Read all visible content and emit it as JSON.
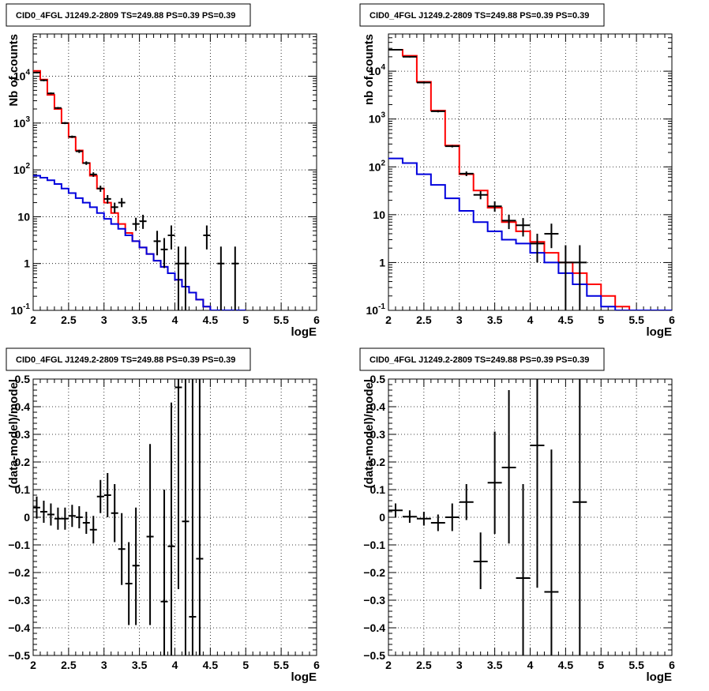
{
  "chart_data": [
    {
      "type": "histogram-step",
      "title": "CID0_4FGL J1249.2-2809 TS=249.88 PS=0.39 PS=0.39",
      "xlabel": "logE",
      "ylabel": "Nb of counts",
      "xlim": [
        2,
        6
      ],
      "ylim": [
        0.1,
        80000
      ],
      "yscale": "log",
      "grid": true,
      "x_ticks": [
        "2",
        "2.5",
        "3",
        "3.5",
        "4",
        "4.5",
        "5",
        "5.5",
        "6"
      ],
      "y_ticks": [
        {
          "v": 0.1,
          "base": "10",
          "exp": "-1"
        },
        {
          "v": 1,
          "label": "1"
        },
        {
          "v": 10,
          "label": "10"
        },
        {
          "v": 100,
          "base": "10",
          "exp": "2"
        },
        {
          "v": 1000,
          "base": "10",
          "exp": "3"
        },
        {
          "v": 10000,
          "base": "10",
          "exp": "4"
        }
      ],
      "edges": [
        2.0,
        2.1,
        2.2,
        2.3,
        2.4,
        2.5,
        2.6,
        2.7,
        2.8,
        2.9,
        3.0,
        3.1,
        3.2,
        3.3,
        3.4,
        3.5,
        3.6,
        3.7,
        3.8,
        3.9,
        4.0,
        4.1,
        4.2,
        4.3,
        4.4,
        4.5,
        4.6,
        4.7,
        4.8,
        4.9,
        5.0,
        5.1,
        5.2,
        5.3,
        5.4,
        5.5,
        5.6,
        5.7,
        5.8,
        5.9,
        6.0
      ],
      "series": [
        {
          "color": "#ff0000",
          "values": [
            13000,
            8500,
            4000,
            2000,
            1000,
            500,
            260,
            140,
            75,
            40,
            20,
            12,
            7,
            4.5,
            3,
            2.2,
            1.6,
            1.15,
            0.85,
            0.62,
            0.45,
            0.32,
            0.24,
            0.17,
            0.12,
            0.1,
            0.1,
            0.1,
            0.1,
            0.1
          ]
        },
        {
          "color": "#0000dd",
          "values": [
            75,
            68,
            60,
            50,
            40,
            32,
            25,
            20,
            16,
            12,
            9,
            7,
            5.5,
            4,
            3,
            2.2,
            1.6,
            1.15,
            0.85,
            0.62,
            0.45,
            0.32,
            0.24,
            0.17,
            0.12,
            0.1,
            0.1,
            0.1,
            0.1,
            0.1
          ]
        }
      ],
      "points": [
        {
          "x": 2.05,
          "y": 12000,
          "lo": 11500,
          "hi": 12500,
          "xe": 0.05
        },
        {
          "x": 2.15,
          "y": 8200,
          "lo": 7800,
          "hi": 8600,
          "xe": 0.05
        },
        {
          "x": 2.25,
          "y": 4300,
          "lo": 4100,
          "hi": 4500,
          "xe": 0.05
        },
        {
          "x": 2.35,
          "y": 2100,
          "lo": 2000,
          "hi": 2200,
          "xe": 0.05
        },
        {
          "x": 2.45,
          "y": 1000,
          "lo": 950,
          "hi": 1050,
          "xe": 0.05
        },
        {
          "x": 2.55,
          "y": 510,
          "lo": 480,
          "hi": 540,
          "xe": 0.05
        },
        {
          "x": 2.65,
          "y": 250,
          "lo": 230,
          "hi": 270,
          "xe": 0.05
        },
        {
          "x": 2.75,
          "y": 140,
          "lo": 128,
          "hi": 152,
          "xe": 0.05
        },
        {
          "x": 2.85,
          "y": 80,
          "lo": 71,
          "hi": 89,
          "xe": 0.05
        },
        {
          "x": 2.95,
          "y": 40,
          "lo": 34,
          "hi": 46,
          "xe": 0.05
        },
        {
          "x": 3.05,
          "y": 24,
          "lo": 19,
          "hi": 29,
          "xe": 0.05
        },
        {
          "x": 3.15,
          "y": 16,
          "lo": 12,
          "hi": 20,
          "xe": 0.05
        },
        {
          "x": 3.25,
          "y": 20,
          "lo": 16,
          "hi": 25,
          "xe": 0.05
        },
        {
          "x": 3.45,
          "y": 7,
          "lo": 5,
          "hi": 9.5,
          "xe": 0.05
        },
        {
          "x": 3.55,
          "y": 8,
          "lo": 5.5,
          "hi": 11,
          "xe": 0.05
        },
        {
          "x": 3.75,
          "y": 3,
          "lo": 1.5,
          "hi": 5,
          "xe": 0.05
        },
        {
          "x": 3.85,
          "y": 2,
          "lo": 0.8,
          "hi": 3.5,
          "xe": 0.05
        },
        {
          "x": 3.95,
          "y": 4,
          "lo": 2,
          "hi": 6.5,
          "xe": 0.05
        },
        {
          "x": 4.05,
          "y": 1,
          "lo": 0.1,
          "hi": 2.3,
          "xe": 0.05
        },
        {
          "x": 4.15,
          "y": 1,
          "lo": 0.1,
          "hi": 2.3,
          "xe": 0.05
        },
        {
          "x": 4.45,
          "y": 4,
          "lo": 2,
          "hi": 6.5,
          "xe": 0.05
        },
        {
          "x": 4.65,
          "y": 1,
          "lo": 0.1,
          "hi": 2.3,
          "xe": 0.05
        },
        {
          "x": 4.85,
          "y": 1,
          "lo": 0.1,
          "hi": 2.3,
          "xe": 0.05
        }
      ]
    },
    {
      "type": "histogram-step",
      "title": "CID0_4FGL J1249.2-2809 TS=249.88 PS=0.39 PS=0.39",
      "xlabel": "logE",
      "ylabel": "nb of counts",
      "xlim": [
        2,
        6
      ],
      "ylim": [
        0.1,
        60000
      ],
      "yscale": "log",
      "grid": true,
      "x_ticks": [
        "2",
        "2.5",
        "3",
        "3.5",
        "4",
        "4.5",
        "5",
        "5.5",
        "6"
      ],
      "y_ticks": [
        {
          "v": 0.1,
          "base": "10",
          "exp": "-1"
        },
        {
          "v": 1,
          "label": "1"
        },
        {
          "v": 10,
          "label": "10"
        },
        {
          "v": 100,
          "base": "10",
          "exp": "2"
        },
        {
          "v": 1000,
          "base": "10",
          "exp": "3"
        },
        {
          "v": 10000,
          "base": "10",
          "exp": "4"
        }
      ],
      "edges": [
        2.0,
        2.2,
        2.4,
        2.6,
        2.8,
        3.0,
        3.2,
        3.4,
        3.6,
        3.8,
        4.0,
        4.2,
        4.4,
        4.6,
        4.8,
        5.0,
        5.2,
        5.4,
        5.6,
        5.8,
        6.0
      ],
      "series": [
        {
          "color": "#ff0000",
          "values": [
            28000,
            21000,
            6000,
            1500,
            280,
            70,
            32,
            14,
            7,
            4.5,
            2.7,
            1.6,
            1,
            0.6,
            0.35,
            0.2,
            0.12,
            0.1,
            0.1,
            0.1
          ]
        },
        {
          "color": "#0000dd",
          "values": [
            150,
            120,
            70,
            42,
            22,
            12,
            7,
            4.5,
            3,
            2.5,
            1.6,
            1,
            0.6,
            0.35,
            0.2,
            0.12,
            0.1,
            0.1,
            0.1,
            0.1
          ]
        }
      ],
      "points": [
        {
          "x": 2.1,
          "y": 28000,
          "lo": 27200,
          "hi": 28800,
          "xe": 0.1
        },
        {
          "x": 2.3,
          "y": 20000,
          "lo": 19300,
          "hi": 20700,
          "xe": 0.1
        },
        {
          "x": 2.5,
          "y": 5800,
          "lo": 5500,
          "hi": 6100,
          "xe": 0.1
        },
        {
          "x": 2.7,
          "y": 1450,
          "lo": 1380,
          "hi": 1520,
          "xe": 0.1
        },
        {
          "x": 2.9,
          "y": 270,
          "lo": 255,
          "hi": 285,
          "xe": 0.1
        },
        {
          "x": 3.1,
          "y": 72,
          "lo": 64,
          "hi": 80,
          "xe": 0.1
        },
        {
          "x": 3.3,
          "y": 26,
          "lo": 21,
          "hi": 31,
          "xe": 0.1
        },
        {
          "x": 3.5,
          "y": 15,
          "lo": 11.5,
          "hi": 19,
          "xe": 0.1
        },
        {
          "x": 3.7,
          "y": 7.5,
          "lo": 5,
          "hi": 10,
          "xe": 0.1
        },
        {
          "x": 3.9,
          "y": 6,
          "lo": 3.5,
          "hi": 8.5,
          "xe": 0.1
        },
        {
          "x": 4.1,
          "y": 2.5,
          "lo": 1,
          "hi": 4,
          "xe": 0.1
        },
        {
          "x": 4.3,
          "y": 4,
          "lo": 2,
          "hi": 6.5,
          "xe": 0.1
        },
        {
          "x": 4.5,
          "y": 1,
          "lo": 0.1,
          "hi": 2.3,
          "xe": 0.1
        },
        {
          "x": 4.7,
          "y": 1,
          "lo": 0.1,
          "hi": 2.3,
          "xe": 0.1
        }
      ]
    },
    {
      "type": "scatter-errorbars",
      "title": "CID0_4FGL J1249.2-2809 TS=249.88 PS=0.39 PS=0.39",
      "xlabel": "logE",
      "ylabel": "(data-model)/model",
      "xlim": [
        2,
        6
      ],
      "ylim": [
        -0.5,
        0.5
      ],
      "yscale": "linear",
      "grid": true,
      "x_ticks": [
        "2",
        "2.5",
        "3",
        "3.5",
        "4",
        "4.5",
        "5",
        "5.5",
        "6"
      ],
      "y_ticks": [
        {
          "v": -0.5,
          "label": "−0.5"
        },
        {
          "v": -0.4,
          "label": "−0.4"
        },
        {
          "v": -0.3,
          "label": "−0.3"
        },
        {
          "v": -0.2,
          "label": "−0.2"
        },
        {
          "v": -0.1,
          "label": "−0.1"
        },
        {
          "v": 0,
          "label": "0"
        },
        {
          "v": 0.1,
          "label": "0.1"
        },
        {
          "v": 0.2,
          "label": "0.2"
        },
        {
          "v": 0.3,
          "label": "0.3"
        },
        {
          "v": 0.4,
          "label": "0.4"
        },
        {
          "v": 0.5,
          "label": "0.5"
        }
      ],
      "points": [
        {
          "x": 2.05,
          "y": 0.035,
          "lo": -0.005,
          "hi": 0.075,
          "xe": 0.05
        },
        {
          "x": 2.15,
          "y": 0.02,
          "lo": -0.02,
          "hi": 0.06,
          "xe": 0.05
        },
        {
          "x": 2.25,
          "y": 0.01,
          "lo": -0.03,
          "hi": 0.05,
          "xe": 0.05
        },
        {
          "x": 2.35,
          "y": -0.005,
          "lo": -0.045,
          "hi": 0.035,
          "xe": 0.05
        },
        {
          "x": 2.45,
          "y": -0.005,
          "lo": -0.045,
          "hi": 0.035,
          "xe": 0.05
        },
        {
          "x": 2.55,
          "y": 0.005,
          "lo": -0.035,
          "hi": 0.045,
          "xe": 0.05
        },
        {
          "x": 2.65,
          "y": 0.0,
          "lo": -0.04,
          "hi": 0.04,
          "xe": 0.05
        },
        {
          "x": 2.75,
          "y": -0.02,
          "lo": -0.06,
          "hi": 0.02,
          "xe": 0.05
        },
        {
          "x": 2.85,
          "y": -0.045,
          "lo": -0.095,
          "hi": 0.005,
          "xe": 0.05
        },
        {
          "x": 2.95,
          "y": 0.075,
          "lo": 0.015,
          "hi": 0.135,
          "xe": 0.05
        },
        {
          "x": 3.05,
          "y": 0.08,
          "lo": 0.0,
          "hi": 0.16,
          "xe": 0.05
        },
        {
          "x": 3.15,
          "y": 0.015,
          "lo": -0.09,
          "hi": 0.12,
          "xe": 0.05
        },
        {
          "x": 3.25,
          "y": -0.115,
          "lo": -0.245,
          "hi": 0.015,
          "xe": 0.05
        },
        {
          "x": 3.35,
          "y": -0.24,
          "lo": -0.39,
          "hi": -0.09,
          "xe": 0.05
        },
        {
          "x": 3.45,
          "y": -0.175,
          "lo": -0.39,
          "hi": 0.035,
          "xe": 0.05
        },
        {
          "x": 3.65,
          "y": -0.07,
          "lo": -0.39,
          "hi": 0.265,
          "xe": 0.05
        },
        {
          "x": 3.85,
          "y": -0.305,
          "lo": -0.5,
          "hi": 0.1,
          "xe": 0.05
        },
        {
          "x": 3.95,
          "y": -0.105,
          "lo": -0.5,
          "hi": 0.415,
          "xe": 0.05
        },
        {
          "x": 4.05,
          "y": 0.47,
          "lo": -0.26,
          "hi": 0.5,
          "xe": 0.05
        },
        {
          "x": 4.15,
          "y": -0.015,
          "lo": -0.5,
          "hi": 0.5,
          "xe": 0.05
        },
        {
          "x": 4.25,
          "y": -0.36,
          "lo": -0.5,
          "hi": 0.5,
          "xe": 0.05
        },
        {
          "x": 4.35,
          "y": -0.15,
          "lo": -0.5,
          "hi": 0.5,
          "xe": 0.05
        }
      ]
    },
    {
      "type": "scatter-errorbars",
      "title": "CID0_4FGL J1249.2-2809 TS=249.88 PS=0.39 PS=0.39",
      "xlabel": "logE",
      "ylabel": "(data-model)/model",
      "xlim": [
        2,
        6
      ],
      "ylim": [
        -0.5,
        0.5
      ],
      "yscale": "linear",
      "grid": true,
      "x_ticks": [
        "2",
        "2.5",
        "3",
        "3.5",
        "4",
        "4.5",
        "5",
        "5.5",
        "6"
      ],
      "y_ticks": [
        {
          "v": -0.5,
          "label": "−0.5"
        },
        {
          "v": -0.4,
          "label": "−0.4"
        },
        {
          "v": -0.3,
          "label": "−0.3"
        },
        {
          "v": -0.2,
          "label": "−0.2"
        },
        {
          "v": -0.1,
          "label": "−0.1"
        },
        {
          "v": 0,
          "label": "0"
        },
        {
          "v": 0.1,
          "label": "0.1"
        },
        {
          "v": 0.2,
          "label": "0.2"
        },
        {
          "v": 0.3,
          "label": "0.3"
        },
        {
          "v": 0.4,
          "label": "0.4"
        },
        {
          "v": 0.5,
          "label": "0.5"
        }
      ],
      "points": [
        {
          "x": 2.1,
          "y": 0.025,
          "lo": 0.0,
          "hi": 0.05,
          "xe": 0.1
        },
        {
          "x": 2.3,
          "y": 0.002,
          "lo": -0.02,
          "hi": 0.025,
          "xe": 0.1
        },
        {
          "x": 2.5,
          "y": -0.005,
          "lo": -0.03,
          "hi": 0.02,
          "xe": 0.1
        },
        {
          "x": 2.7,
          "y": -0.02,
          "lo": -0.05,
          "hi": 0.01,
          "xe": 0.1
        },
        {
          "x": 2.9,
          "y": 0.0,
          "lo": -0.05,
          "hi": 0.05,
          "xe": 0.1
        },
        {
          "x": 3.1,
          "y": 0.055,
          "lo": -0.01,
          "hi": 0.12,
          "xe": 0.1
        },
        {
          "x": 3.3,
          "y": -0.16,
          "lo": -0.26,
          "hi": -0.055,
          "xe": 0.1
        },
        {
          "x": 3.5,
          "y": 0.125,
          "lo": -0.06,
          "hi": 0.31,
          "xe": 0.1
        },
        {
          "x": 3.7,
          "y": 0.18,
          "lo": -0.095,
          "hi": 0.46,
          "xe": 0.1
        },
        {
          "x": 3.9,
          "y": -0.22,
          "lo": -0.5,
          "hi": 0.12,
          "xe": 0.1
        },
        {
          "x": 4.1,
          "y": 0.26,
          "lo": -0.255,
          "hi": 0.5,
          "xe": 0.1
        },
        {
          "x": 4.3,
          "y": -0.27,
          "lo": -0.5,
          "hi": 0.245,
          "xe": 0.1
        },
        {
          "x": 4.7,
          "y": 0.055,
          "lo": -0.5,
          "hi": 0.5,
          "xe": 0.1
        }
      ]
    }
  ]
}
